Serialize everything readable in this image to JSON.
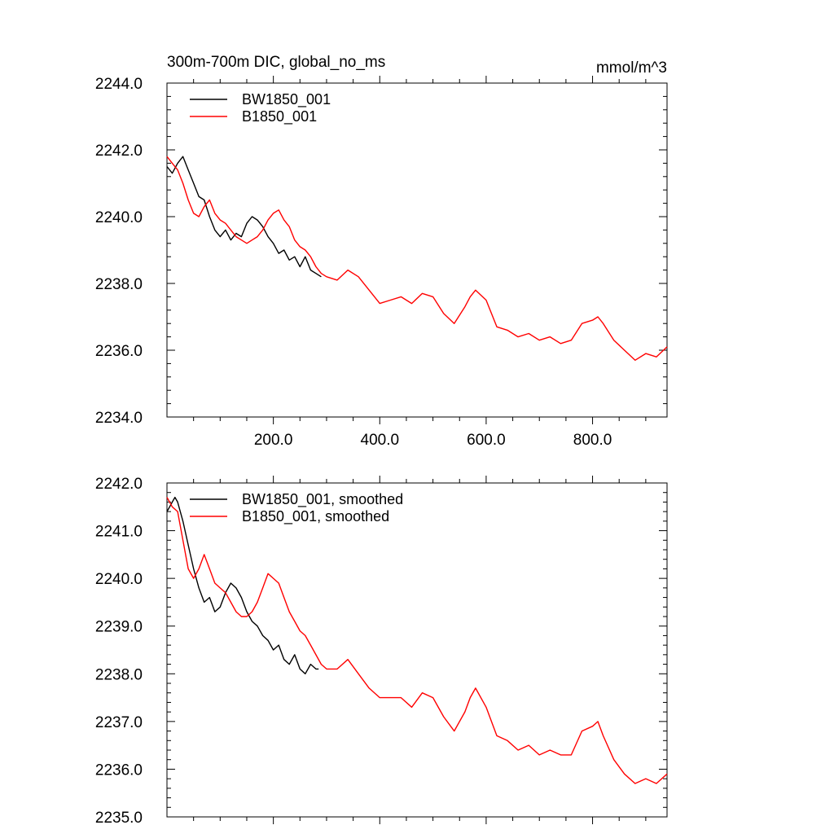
{
  "chart_data": [
    {
      "type": "line",
      "title": "300m-700m DIC, global_no_ms",
      "units": "mmol/m^3",
      "xlim": [
        0,
        940
      ],
      "ylim": [
        2234.0,
        2244.0
      ],
      "x_tick_labels": [
        "200.0",
        "400.0",
        "600.0",
        "800.0"
      ],
      "x_tick_values": [
        200,
        400,
        600,
        800
      ],
      "y_tick_labels": [
        "2234.0",
        "2236.0",
        "2238.0",
        "2240.0",
        "2242.0",
        "2244.0"
      ],
      "y_tick_values": [
        2234,
        2236,
        2238,
        2240,
        2242,
        2244
      ],
      "legend": [
        "BW1850_001",
        "B1850_001"
      ],
      "series": [
        {
          "name": "BW1850_001",
          "color": "#000000",
          "x": [
            0,
            10,
            20,
            30,
            40,
            50,
            60,
            70,
            80,
            90,
            100,
            110,
            120,
            130,
            140,
            150,
            160,
            170,
            180,
            190,
            200,
            210,
            220,
            230,
            240,
            250,
            260,
            270,
            280,
            290
          ],
          "y": [
            2241.5,
            2241.3,
            2241.6,
            2241.8,
            2241.4,
            2241.0,
            2240.6,
            2240.5,
            2240.0,
            2239.6,
            2239.4,
            2239.6,
            2239.3,
            2239.5,
            2239.4,
            2239.8,
            2240.0,
            2239.9,
            2239.7,
            2239.4,
            2239.2,
            2238.9,
            2239.0,
            2238.7,
            2238.8,
            2238.5,
            2238.8,
            2238.4,
            2238.3,
            2238.2
          ]
        },
        {
          "name": "B1850_001",
          "color": "#ff0000",
          "x": [
            0,
            10,
            20,
            30,
            40,
            50,
            60,
            70,
            80,
            90,
            100,
            110,
            120,
            130,
            140,
            150,
            160,
            170,
            180,
            190,
            200,
            210,
            220,
            230,
            240,
            250,
            260,
            270,
            280,
            290,
            300,
            320,
            340,
            360,
            380,
            400,
            420,
            440,
            460,
            480,
            500,
            520,
            540,
            560,
            570,
            580,
            600,
            620,
            640,
            660,
            680,
            700,
            720,
            740,
            760,
            780,
            800,
            810,
            820,
            840,
            860,
            880,
            900,
            920,
            940
          ],
          "y": [
            2241.8,
            2241.6,
            2241.4,
            2241.0,
            2240.5,
            2240.1,
            2240.0,
            2240.3,
            2240.5,
            2240.1,
            2239.9,
            2239.8,
            2239.6,
            2239.4,
            2239.3,
            2239.2,
            2239.3,
            2239.4,
            2239.6,
            2239.9,
            2240.1,
            2240.2,
            2239.9,
            2239.7,
            2239.3,
            2239.1,
            2239.0,
            2238.8,
            2238.5,
            2238.3,
            2238.2,
            2238.1,
            2238.4,
            2238.2,
            2237.8,
            2237.4,
            2237.5,
            2237.6,
            2237.4,
            2237.7,
            2237.6,
            2237.1,
            2236.8,
            2237.3,
            2237.6,
            2237.8,
            2237.5,
            2236.7,
            2236.6,
            2236.4,
            2236.5,
            2236.3,
            2236.4,
            2236.2,
            2236.3,
            2236.8,
            2236.9,
            2237.0,
            2236.8,
            2236.3,
            2236.0,
            2235.7,
            2235.9,
            2235.8,
            2236.1
          ]
        }
      ]
    },
    {
      "type": "line",
      "title": "",
      "xlim": [
        0,
        940
      ],
      "ylim": [
        2235.0,
        2242.0
      ],
      "x_tick_values": [
        200,
        400,
        600,
        800
      ],
      "y_tick_labels": [
        "2235.0",
        "2236.0",
        "2237.0",
        "2238.0",
        "2239.0",
        "2240.0",
        "2241.0",
        "2242.0"
      ],
      "y_tick_values": [
        2235,
        2236,
        2237,
        2238,
        2239,
        2240,
        2241,
        2242
      ],
      "legend": [
        "BW1850_001, smoothed",
        "B1850_001, smoothed"
      ],
      "series": [
        {
          "name": "BW1850_001, smoothed",
          "color": "#000000",
          "x": [
            0,
            5,
            10,
            15,
            20,
            30,
            40,
            50,
            60,
            70,
            80,
            90,
            100,
            110,
            120,
            130,
            140,
            150,
            160,
            170,
            180,
            190,
            200,
            210,
            220,
            230,
            240,
            250,
            260,
            270,
            280,
            285
          ],
          "y": [
            2241.4,
            2241.5,
            2241.6,
            2241.7,
            2241.6,
            2241.2,
            2240.7,
            2240.2,
            2239.8,
            2239.5,
            2239.6,
            2239.3,
            2239.4,
            2239.7,
            2239.9,
            2239.8,
            2239.6,
            2239.3,
            2239.1,
            2239.0,
            2238.8,
            2238.7,
            2238.5,
            2238.6,
            2238.3,
            2238.2,
            2238.4,
            2238.1,
            2238.0,
            2238.2,
            2238.1,
            2238.1
          ]
        },
        {
          "name": "B1850_001, smoothed",
          "color": "#ff0000",
          "x": [
            0,
            10,
            20,
            30,
            40,
            50,
            60,
            70,
            80,
            90,
            100,
            110,
            120,
            130,
            140,
            150,
            160,
            170,
            180,
            190,
            200,
            210,
            220,
            230,
            240,
            250,
            260,
            270,
            280,
            290,
            300,
            320,
            340,
            360,
            380,
            400,
            420,
            440,
            460,
            480,
            500,
            520,
            540,
            560,
            570,
            580,
            600,
            620,
            640,
            660,
            680,
            700,
            720,
            740,
            760,
            780,
            800,
            810,
            820,
            840,
            860,
            880,
            900,
            920,
            940
          ],
          "y": [
            2241.7,
            2241.5,
            2241.4,
            2240.8,
            2240.2,
            2240.0,
            2240.2,
            2240.5,
            2240.2,
            2239.9,
            2239.8,
            2239.7,
            2239.5,
            2239.3,
            2239.2,
            2239.2,
            2239.3,
            2239.5,
            2239.8,
            2240.1,
            2240.0,
            2239.9,
            2239.6,
            2239.3,
            2239.1,
            2238.9,
            2238.8,
            2238.6,
            2238.4,
            2238.2,
            2238.1,
            2238.1,
            2238.3,
            2238.0,
            2237.7,
            2237.5,
            2237.5,
            2237.5,
            2237.3,
            2237.6,
            2237.5,
            2237.1,
            2236.8,
            2237.2,
            2237.5,
            2237.7,
            2237.3,
            2236.7,
            2236.6,
            2236.4,
            2236.5,
            2236.3,
            2236.4,
            2236.3,
            2236.3,
            2236.8,
            2236.9,
            2237.0,
            2236.7,
            2236.2,
            2235.9,
            2235.7,
            2235.8,
            2235.7,
            2235.9
          ]
        }
      ]
    }
  ]
}
